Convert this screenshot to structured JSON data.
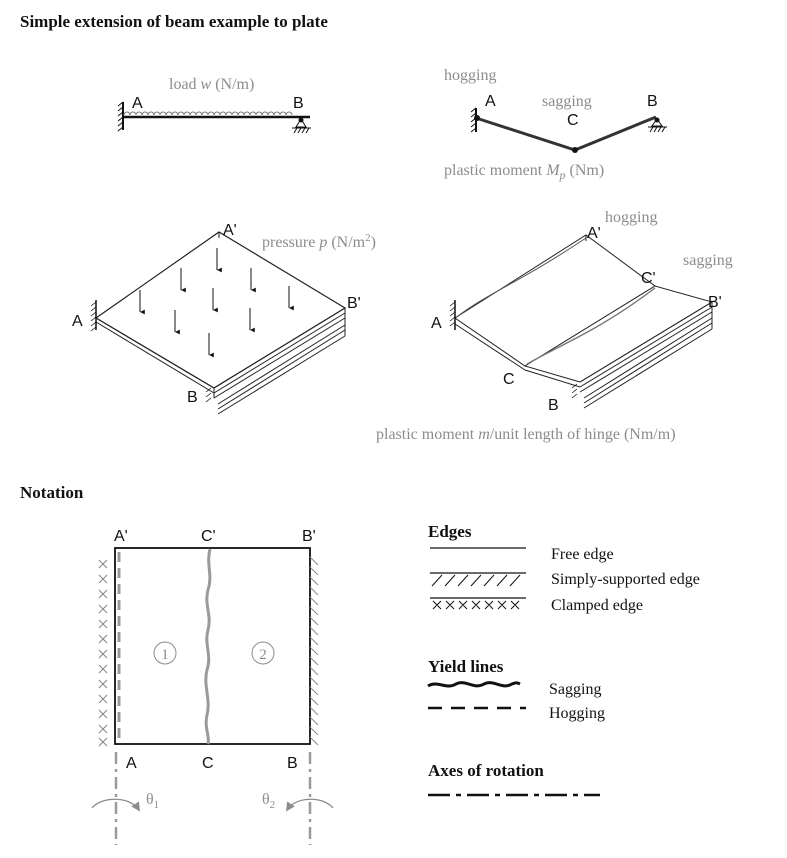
{
  "colors": {
    "ink": "#111111",
    "label_grey": "#8c8c8c",
    "line_grey": "#9a9a9a"
  },
  "headings": {
    "title": "Simple extension of beam example to plate",
    "notation": "Notation"
  },
  "beam_loaded": {
    "load": "load ",
    "w": "w",
    "units": " (N/m)",
    "A": "A",
    "B": "B"
  },
  "beam_collapse": {
    "hogging": "hogging",
    "sagging": "sagging",
    "A": "A",
    "B": "B",
    "C": "C",
    "plastic_moment": "plastic moment ",
    "M": "M",
    "p": "p",
    "units": " (Nm)"
  },
  "plate_loaded": {
    "pressure": "pressure ",
    "p": "p",
    "units": " (N/m",
    "sup": "2",
    "close": ")",
    "A": "A",
    "A_prime": "A'",
    "B": "B",
    "B_prime": "B'"
  },
  "plate_collapse": {
    "hogging": "hogging",
    "sagging": "sagging",
    "A": "A",
    "A_prime": "A'",
    "B": "B",
    "B_prime": "B'",
    "C": "C",
    "C_prime": "C'",
    "caption_a": "plastic moment ",
    "m": "m",
    "caption_b": "/unit length of hinge (Nm/m)"
  },
  "notation_plate": {
    "A_prime": "A'",
    "C_prime": "C'",
    "B_prime": "B'",
    "A": "A",
    "C": "C",
    "B": "B",
    "region1": "1",
    "region2": "2",
    "theta": "θ",
    "sub1": "1",
    "sub2": "2"
  },
  "legend": {
    "edges_heading": "Edges",
    "free_edge": "Free edge",
    "simply_supported": "Simply-supported edge",
    "clamped": "Clamped edge",
    "yield_heading": "Yield lines",
    "sagging": "Sagging",
    "hogging": "Hogging",
    "axes_heading": "Axes of rotation"
  }
}
